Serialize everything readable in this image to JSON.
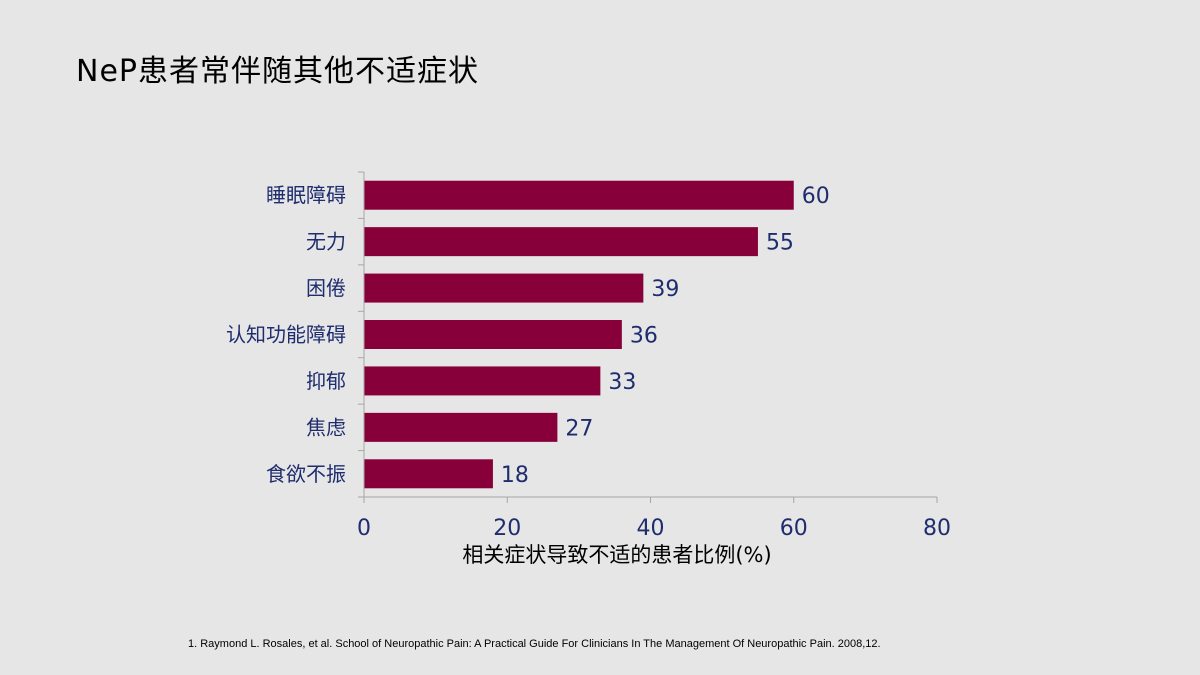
{
  "slide": {
    "title": "NeP患者常伴随其他不适症状",
    "footnote": "1. Raymond L. Rosales, et al. School of Neuropathic Pain: A Practical Guide For Clinicians In The Management Of Neuropathic Pain. 2008,12."
  },
  "chart_data": {
    "type": "bar",
    "orientation": "horizontal",
    "categories": [
      "睡眠障碍",
      "无力",
      "困倦",
      "认知功能障碍",
      "抑郁",
      "焦虑",
      "食欲不振"
    ],
    "values": [
      60,
      55,
      39,
      36,
      33,
      27,
      18
    ],
    "xlabel": "相关症状导致不适的患者比例(%)",
    "ylabel": "",
    "xlim": [
      0,
      80
    ],
    "xticks": [
      0,
      20,
      40,
      60,
      80
    ],
    "data_labels": true,
    "grid": false,
    "legend": "none",
    "colors": {
      "bar": "#87003a",
      "label_text": "#1f2d6e",
      "axis": "#a6a6a6"
    }
  }
}
